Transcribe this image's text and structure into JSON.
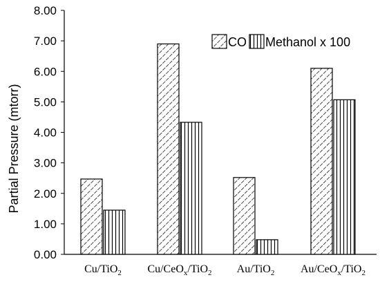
{
  "chart_data": {
    "type": "bar",
    "title": "",
    "xlabel": "",
    "ylabel": "Partial Pressure (mtorr)",
    "ylim": [
      0,
      8
    ],
    "yticks": [
      "0.00",
      "1.00",
      "2.00",
      "3.00",
      "4.00",
      "5.00",
      "6.00",
      "7.00",
      "8.00"
    ],
    "grid": false,
    "legend_position": "top-right",
    "categories": [
      {
        "base": "Cu/TiO",
        "sub": "2",
        "mid": "",
        "sub2": ""
      },
      {
        "base": "Cu/CeO",
        "sub": "x",
        "mid": "/TiO",
        "sub2": "2"
      },
      {
        "base": "Au/TiO",
        "sub": "2",
        "mid": "",
        "sub2": ""
      },
      {
        "base": "Au/CeO",
        "sub": "x",
        "mid": "/TiO",
        "sub2": "2"
      }
    ],
    "series": [
      {
        "name": "CO",
        "pattern": "diagonal-hatch",
        "values": [
          2.47,
          6.9,
          2.52,
          6.1
        ]
      },
      {
        "name": "Methanol x 100",
        "pattern": "vertical-hatch",
        "values": [
          1.45,
          4.33,
          0.48,
          5.07
        ]
      }
    ]
  }
}
